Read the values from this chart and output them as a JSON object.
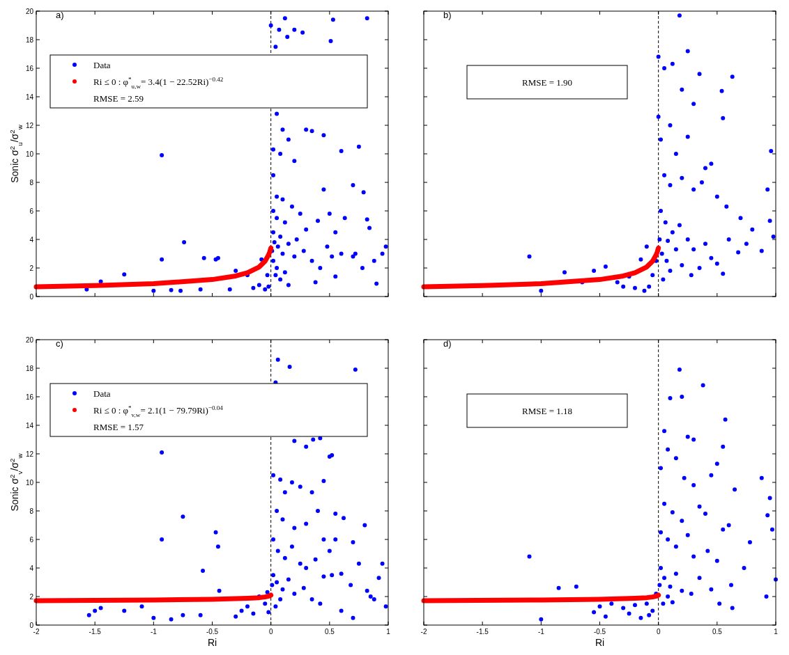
{
  "chart_data": [
    {
      "type": "scatter",
      "ylabel": "Sonic σ$^{2}$$_{u}$/σ$^{2}$$_{w}$",
      "xlim": [
        -2,
        1
      ],
      "ylim": [
        0,
        20
      ],
      "xticks": [
        -2,
        -1.5,
        -1,
        -0.5,
        0,
        0.5,
        1
      ],
      "yticks": [
        0,
        2,
        4,
        6,
        8,
        10,
        12,
        14,
        16,
        18,
        20
      ],
      "tick_labels": "y",
      "grid": false,
      "legend": "top left",
      "annotations": [
        "a)",
        "RMSE = 2.59"
      ],
      "ref_lines": [
        {
          "axis": "x",
          "value": 0,
          "color": "#000000",
          "line_style": "dashed"
        }
      ],
      "series": [
        {
          "name": "Data",
          "color": "#0000ff",
          "marker": "circle",
          "x": [
            -1.57,
            -1.45,
            -1.25,
            -0.93,
            -0.93,
            -1.0,
            -0.85,
            -0.74,
            -0.77,
            -0.6,
            -0.57,
            -0.47,
            -0.45,
            -0.3,
            -0.35,
            -0.2,
            -0.15,
            -0.1,
            -0.05,
            -0.08,
            -0.03,
            -0.02,
            0,
            0.04,
            0.07,
            0.12,
            0.14,
            0.2,
            0.27,
            0.53,
            0.51,
            0.82,
            0.05,
            0.1,
            0.02,
            0.08,
            0.15,
            0.2,
            0.3,
            0.35,
            0.45,
            0.6,
            0.75,
            0.79,
            0.7,
            0.02,
            0.05,
            0.1,
            0.02,
            0.05,
            0.12,
            0.18,
            0.25,
            0.3,
            0.4,
            0.45,
            0.5,
            0.55,
            0.6,
            0.63,
            0.7,
            0.82,
            0.84,
            0.88,
            0.95,
            0.98,
            0.9,
            0.02,
            0.03,
            0.06,
            0.08,
            0.1,
            0.15,
            0.2,
            0.22,
            0.28,
            0.35,
            0.38,
            0.42,
            0.48,
            0.52,
            0.02,
            0.05,
            0.08,
            0.12,
            0.15,
            0.55,
            0.72,
            0.78,
            0.01,
            0.04
          ],
          "values": [
            0.5,
            1.05,
            1.55,
            9.9,
            2.6,
            0.4,
            0.45,
            3.8,
            0.4,
            0.5,
            2.7,
            2.6,
            2.7,
            1.8,
            0.5,
            1.5,
            0.6,
            0.8,
            0.5,
            2.6,
            1.5,
            0.7,
            19,
            17.5,
            18.7,
            19.5,
            18.2,
            18.7,
            18.5,
            19.4,
            17.9,
            19.5,
            12.8,
            11.7,
            10.3,
            10,
            11,
            9.5,
            11.7,
            11.6,
            11.3,
            10.2,
            10.5,
            7.3,
            7.8,
            8.5,
            7,
            6.8,
            6,
            5.5,
            5.2,
            6.3,
            5.8,
            4.7,
            5.3,
            7.5,
            5.8,
            4.5,
            3,
            5.5,
            2.8,
            5.4,
            4.8,
            2.5,
            3,
            3.5,
            0.9,
            4.5,
            3.8,
            3.5,
            4.2,
            3,
            3.7,
            2.8,
            4,
            3.2,
            2.5,
            1,
            2,
            3.5,
            2.8,
            2.5,
            2,
            1.2,
            1.7,
            0.8,
            1.4,
            3,
            2,
            3.2,
            1.5
          ]
        },
        {
          "name": "Ri ≤ 0 : φ$^{*}$$_{u,w}$= 3.4(1 − 22.52Ri)$^{−0.42}$",
          "color": "#ff0000",
          "type": "line",
          "x": [
            -2,
            -1.5,
            -1,
            -0.5,
            -0.3,
            -0.2,
            -0.1,
            -0.05,
            -0.02,
            -0.01,
            0
          ],
          "values": [
            0.68,
            0.77,
            0.9,
            1.19,
            1.44,
            1.66,
            2.07,
            2.48,
            2.91,
            3.12,
            3.4
          ]
        }
      ]
    },
    {
      "type": "scatter",
      "xlim": [
        -2,
        1
      ],
      "ylim": [
        0,
        20
      ],
      "xticks": [
        -2,
        -1.5,
        -1,
        -0.5,
        0,
        0.5,
        1
      ],
      "yticks": [
        0,
        2,
        4,
        6,
        8,
        10,
        12,
        14,
        16,
        18,
        20
      ],
      "tick_labels": false,
      "grid": false,
      "annotations": [
        "b)",
        "RMSE = 1.90"
      ],
      "ref_lines": [
        {
          "axis": "x",
          "value": 0,
          "color": "#000000",
          "line_style": "dashed"
        }
      ],
      "series": [
        {
          "color": "#0000ff",
          "marker": "circle",
          "x": [
            -1.1,
            -1,
            -0.8,
            -0.65,
            -0.55,
            -0.45,
            -0.35,
            -0.3,
            -0.25,
            -0.2,
            -0.15,
            -0.1,
            -0.05,
            -0.08,
            -0.02,
            -0.12,
            0,
            0,
            0.05,
            0.12,
            0.18,
            0.25,
            0.2,
            0.3,
            0.35,
            0.54,
            0.63,
            0.55,
            0.02,
            0.1,
            0.15,
            0.25,
            0.4,
            0.45,
            0.05,
            0.1,
            0.2,
            0.3,
            0.37,
            0.5,
            0.58,
            0.7,
            0.96,
            0.93,
            0.95,
            0.98,
            0.88,
            0.8,
            0.75,
            0.68,
            0.02,
            0.06,
            0.12,
            0.18,
            0.25,
            0.3,
            0.4,
            0.45,
            0.5,
            0.55,
            0.6,
            0.03,
            0.07,
            0.1,
            0.15,
            0.2,
            0.28,
            0.35,
            0.01,
            0.04,
            0.08
          ],
          "values": [
            2.8,
            0.4,
            1.7,
            1,
            1.8,
            2.1,
            1,
            0.7,
            1.4,
            0.6,
            2.6,
            3.5,
            1.5,
            0.7,
            2.5,
            0.4,
            16.8,
            12.6,
            16,
            16.3,
            19.7,
            17.2,
            14.5,
            13.5,
            15.6,
            14.4,
            15.4,
            12.5,
            11,
            12,
            10,
            11.2,
            9,
            9.3,
            8.5,
            7.8,
            8.3,
            7.5,
            8,
            7,
            6.3,
            5.5,
            10.2,
            7.5,
            5.3,
            4.2,
            3.2,
            4.7,
            3.7,
            3.1,
            6,
            5.2,
            4.5,
            5,
            4,
            3.3,
            3.7,
            2.7,
            2.3,
            1.6,
            4,
            3,
            2.5,
            1.8,
            3.3,
            2.2,
            1.5,
            2,
            4,
            1.2,
            3.9
          ]
        },
        {
          "color": "#ff0000",
          "type": "line",
          "x": [
            -2,
            -1.5,
            -1,
            -0.5,
            -0.3,
            -0.2,
            -0.1,
            -0.05,
            -0.02,
            -0.01,
            0
          ],
          "values": [
            0.68,
            0.77,
            0.9,
            1.19,
            1.44,
            1.66,
            2.07,
            2.48,
            2.91,
            3.12,
            3.4
          ]
        }
      ]
    },
    {
      "type": "scatter",
      "xlabel": "Ri",
      "ylabel": "Sonic σ$^{2}$$_{v}$/σ$^{2}$$_{w}$",
      "xlim": [
        -2,
        1
      ],
      "ylim": [
        0,
        20
      ],
      "xticks": [
        -2,
        -1.5,
        -1,
        -0.5,
        0,
        0.5,
        1
      ],
      "yticks": [
        0,
        2,
        4,
        6,
        8,
        10,
        12,
        14,
        16,
        18,
        20
      ],
      "grid": false,
      "legend": "top left",
      "annotations": [
        "c)",
        "RMSE = 1.57"
      ],
      "ref_lines": [
        {
          "axis": "x",
          "value": 0,
          "color": "#000000",
          "line_style": "dashed"
        }
      ],
      "series": [
        {
          "name": "Data",
          "color": "#0000ff",
          "marker": "circle",
          "x": [
            -1.55,
            -1.5,
            -1.45,
            -1.25,
            -1.1,
            -1,
            -0.93,
            -0.93,
            -0.85,
            -0.75,
            -0.75,
            -0.6,
            -0.58,
            -0.47,
            -0.45,
            -0.44,
            -0.3,
            -0.25,
            -0.2,
            -0.15,
            -0.1,
            -0.05,
            -0.03,
            -0.02,
            0.06,
            0.16,
            0.72,
            0.04,
            0.2,
            0.3,
            0.36,
            0.42,
            0.5,
            0.52,
            0.02,
            0.08,
            0.12,
            0.18,
            0.25,
            0.35,
            0.45,
            0.4,
            0.55,
            0.62,
            0.8,
            0.05,
            0.1,
            0.2,
            0.3,
            0.45,
            0.5,
            0.55,
            0.7,
            0.02,
            0.06,
            0.12,
            0.18,
            0.25,
            0.3,
            0.38,
            0.45,
            0.52,
            0.6,
            0.68,
            0.75,
            0.82,
            0.85,
            0.88,
            0.95,
            0.98,
            0.92,
            0.02,
            0.05,
            0.1,
            0.15,
            0.2,
            0.28,
            0.35,
            0.42,
            0.6,
            0.7,
            0.01,
            0.04,
            0.08
          ],
          "values": [
            0.7,
            1,
            1.2,
            1,
            1.3,
            0.5,
            12.1,
            6,
            0.4,
            7.6,
            0.7,
            0.7,
            3.8,
            6.5,
            5.5,
            2.4,
            0.6,
            1,
            1.3,
            0.8,
            2,
            1.5,
            2.3,
            0.9,
            18.6,
            18.1,
            17.9,
            17,
            12.9,
            12.5,
            13,
            13.1,
            11.8,
            11.9,
            10.5,
            10.2,
            9.3,
            10,
            9.7,
            9.3,
            10.1,
            8,
            7.8,
            7.5,
            7,
            8,
            7.4,
            6.8,
            7.1,
            6,
            5.2,
            6,
            5.8,
            6,
            5.2,
            4.7,
            5.5,
            4.3,
            4,
            4.6,
            3.4,
            3.5,
            3.6,
            2.8,
            4.3,
            2.4,
            2,
            1.8,
            4.3,
            1.3,
            3.3,
            3.5,
            3,
            2.5,
            3.2,
            2.2,
            2.6,
            1.8,
            1.5,
            1,
            0.5,
            2.8,
            1.3,
            1.8
          ]
        },
        {
          "name": "Ri ≤ 0 : φ$^{*}$$_{v,w}$= 2.1(1 − 79.79Ri)$^{−0.04}$",
          "color": "#ff0000",
          "type": "line",
          "x": [
            -2,
            -1,
            -0.5,
            -0.2,
            -0.1,
            -0.05,
            -0.01,
            0
          ],
          "values": [
            1.71,
            1.76,
            1.81,
            1.88,
            1.92,
            1.97,
            2.05,
            2.1
          ]
        }
      ]
    },
    {
      "type": "scatter",
      "xlabel": "Ri",
      "xlim": [
        -2,
        1
      ],
      "ylim": [
        0,
        20
      ],
      "xticks": [
        -2,
        -1.5,
        -1,
        -0.5,
        0,
        0.5,
        1
      ],
      "yticks": [
        0,
        2,
        4,
        6,
        8,
        10,
        12,
        14,
        16,
        18,
        20
      ],
      "tick_labels": "x",
      "grid": false,
      "annotations": [
        "d)",
        "RMSE = 1.18"
      ],
      "ref_lines": [
        {
          "axis": "x",
          "value": 0,
          "color": "#000000",
          "line_style": "dashed"
        }
      ],
      "series": [
        {
          "color": "#0000ff",
          "marker": "circle",
          "x": [
            -1.1,
            -1,
            -0.85,
            -0.7,
            -0.55,
            -0.5,
            -0.45,
            -0.4,
            -0.3,
            -0.25,
            -0.2,
            -0.15,
            -0.1,
            -0.05,
            -0.02,
            -0.08,
            0.18,
            0.38,
            0.1,
            0.2,
            0.05,
            0.25,
            0.3,
            0.57,
            0.55,
            0.5,
            0.08,
            0.15,
            0.02,
            0.22,
            0.3,
            0.35,
            0.45,
            0.88,
            0.95,
            0.93,
            0.97,
            0.05,
            0.12,
            0.2,
            0.4,
            0.6,
            0.65,
            0.02,
            0.08,
            0.15,
            0.25,
            0.3,
            0.42,
            0.5,
            0.55,
            0.62,
            0.73,
            0.78,
            0.92,
            1.0,
            0.02,
            0.05,
            0.1,
            0.15,
            0.2,
            0.28,
            0.35,
            0.45,
            0.52,
            0.63,
            0.01,
            0.04,
            0.08,
            0.12
          ],
          "values": [
            4.8,
            0.4,
            2.6,
            2.7,
            0.9,
            1.3,
            0.6,
            1.5,
            1.2,
            0.8,
            1.4,
            0.5,
            1.5,
            1,
            2.2,
            0.7,
            17.9,
            16.8,
            15.9,
            16,
            13.6,
            13.2,
            13,
            14.4,
            12.5,
            11.3,
            12.3,
            11.7,
            11,
            10.3,
            9.8,
            8.3,
            10.5,
            10.3,
            8.9,
            7.7,
            6.7,
            8.5,
            7.9,
            7.3,
            7.8,
            7,
            9.5,
            6.5,
            6,
            5.5,
            6.3,
            4.8,
            5.2,
            4.5,
            6.7,
            2.8,
            4,
            5.8,
            2,
            3.2,
            4,
            3.3,
            2.7,
            3.6,
            2.4,
            2.2,
            3.3,
            2.5,
            1.5,
            1.2,
            2.8,
            1.5,
            2,
            1.6
          ]
        },
        {
          "color": "#ff0000",
          "type": "line",
          "x": [
            -2,
            -1,
            -0.5,
            -0.2,
            -0.1,
            -0.05,
            -0.01,
            0
          ],
          "values": [
            1.71,
            1.76,
            1.81,
            1.88,
            1.92,
            1.97,
            2.05,
            2.1
          ]
        }
      ]
    }
  ]
}
